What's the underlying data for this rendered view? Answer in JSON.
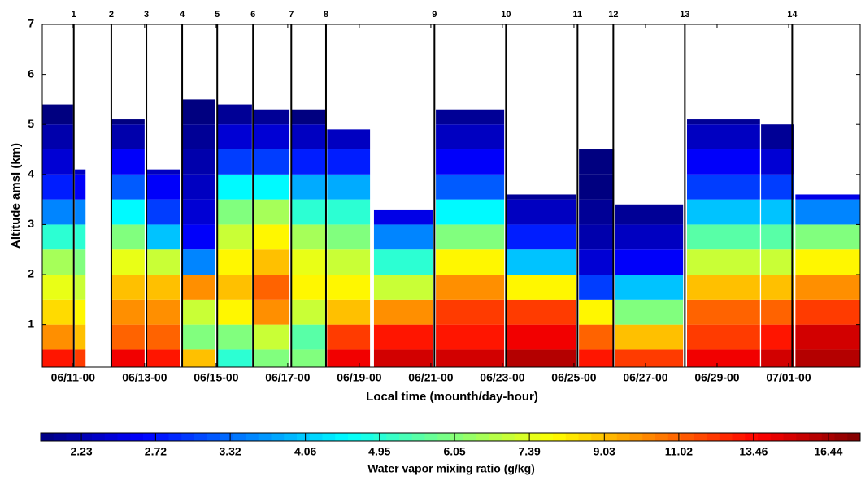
{
  "chart_data": {
    "type": "heatmap",
    "ylabel": "Altitude amsl (km)",
    "xlabel": "Local time (mounth/day-hour)",
    "ylim": [
      0.15,
      7
    ],
    "yticks": [
      1,
      2,
      3,
      4,
      5,
      6,
      7
    ],
    "xlim": [
      10.14,
      33.0
    ],
    "xticks": [
      {
        "value": 11,
        "label": "06/11-00"
      },
      {
        "value": 13,
        "label": "06/13-00"
      },
      {
        "value": 15,
        "label": "06/15-00"
      },
      {
        "value": 17,
        "label": "06/17-00"
      },
      {
        "value": 19,
        "label": "06/19-00"
      },
      {
        "value": 21,
        "label": "06/21-00"
      },
      {
        "value": 23,
        "label": "06/23-00"
      },
      {
        "value": 25,
        "label": "06/25-00"
      },
      {
        "value": 27,
        "label": "06/27-00"
      },
      {
        "value": 29,
        "label": "06/29-00"
      },
      {
        "value": 31,
        "label": "07/01-00"
      }
    ],
    "markers": [
      {
        "x": 11.02,
        "label": "1"
      },
      {
        "x": 12.07,
        "label": "2"
      },
      {
        "x": 13.05,
        "label": "3"
      },
      {
        "x": 14.05,
        "label": "4"
      },
      {
        "x": 15.03,
        "label": "5"
      },
      {
        "x": 16.03,
        "label": "6"
      },
      {
        "x": 17.1,
        "label": "7"
      },
      {
        "x": 18.07,
        "label": "8"
      },
      {
        "x": 21.1,
        "label": "9"
      },
      {
        "x": 23.1,
        "label": "10"
      },
      {
        "x": 25.1,
        "label": "11"
      },
      {
        "x": 26.1,
        "label": "12"
      },
      {
        "x": 28.1,
        "label": "13"
      },
      {
        "x": 31.1,
        "label": "14"
      }
    ],
    "levels": [
      0.15,
      0.5,
      1,
      1.5,
      2,
      2.5,
      3,
      3.5,
      4,
      4.5,
      5,
      5.5
    ],
    "blocks": [
      {
        "start": 10.14,
        "end": 11.0,
        "top": 5.4,
        "values": [
          13,
          10,
          8.5,
          7.5,
          6.5,
          5,
          3.5,
          2.8,
          2.4,
          2.2,
          2.0
        ]
      },
      {
        "start": 11.05,
        "end": 11.35,
        "top": 4.1,
        "values": [
          12,
          9,
          8,
          7,
          6,
          5,
          3.5,
          2.6,
          2.3,
          null,
          null
        ]
      },
      {
        "start": 12.05,
        "end": 13.0,
        "top": 5.1,
        "values": [
          14,
          11,
          10,
          9,
          7.5,
          6,
          4.5,
          3.2,
          2.6,
          2.2,
          2.0
        ]
      },
      {
        "start": 13.05,
        "end": 14.0,
        "top": 4.1,
        "values": [
          13,
          11,
          10,
          9,
          7,
          4,
          3,
          2.6,
          2.3,
          null,
          null
        ]
      },
      {
        "start": 14.05,
        "end": 14.98,
        "top": 5.7,
        "values": [
          9,
          6,
          7,
          10,
          3.5,
          2.6,
          2.4,
          2.3,
          2.2,
          2.1,
          2.0
        ]
      },
      {
        "start": 15.03,
        "end": 16.0,
        "top": 5.4,
        "values": [
          5,
          6,
          8,
          9,
          8,
          7,
          6,
          4.5,
          3,
          2.4,
          2.1
        ]
      },
      {
        "start": 16.05,
        "end": 17.05,
        "top": 5.3,
        "values": [
          6,
          7,
          10,
          11,
          9,
          8,
          6.5,
          4.5,
          3,
          2.4,
          2.1
        ]
      },
      {
        "start": 17.1,
        "end": 18.05,
        "top": 5.3,
        "values": [
          6,
          5.5,
          7,
          8,
          7.5,
          6.5,
          5,
          3.8,
          2.8,
          2.3,
          2.0
        ]
      },
      {
        "start": 18.1,
        "end": 19.3,
        "top": 4.9,
        "values": [
          14,
          12,
          9,
          8,
          7,
          6,
          5,
          3.8,
          2.8,
          2.3,
          null
        ]
      },
      {
        "start": 19.41,
        "end": 21.05,
        "top": 3.3,
        "values": [
          15,
          13,
          10,
          7,
          5,
          3.5,
          2.5,
          null,
          null,
          null,
          null
        ]
      },
      {
        "start": 21.14,
        "end": 23.05,
        "top": 5.3,
        "values": [
          15,
          13,
          12,
          10,
          8,
          6,
          4.5,
          3.2,
          2.6,
          2.3,
          2.1
        ]
      },
      {
        "start": 23.1,
        "end": 25.05,
        "top": 3.6,
        "values": [
          16,
          14,
          12,
          8,
          4,
          2.8,
          2.3,
          2.1,
          null,
          null,
          null
        ]
      },
      {
        "start": 25.14,
        "end": 26.12,
        "top": 4.5,
        "values": [
          13,
          11,
          8,
          3,
          2.4,
          2.2,
          2.1,
          2.0,
          2.0,
          null,
          null
        ]
      },
      {
        "start": 26.16,
        "end": 28.05,
        "top": 3.4,
        "values": [
          12,
          9,
          6,
          4,
          2.6,
          2.3,
          2.1,
          null,
          null,
          null,
          null
        ]
      },
      {
        "start": 28.16,
        "end": 30.2,
        "top": 5.1,
        "values": [
          14,
          12,
          11,
          9,
          7,
          5.5,
          4,
          3,
          2.6,
          2.3,
          2.1
        ]
      },
      {
        "start": 30.23,
        "end": 31.14,
        "top": 5.0,
        "values": [
          15,
          13,
          11,
          9,
          7,
          5.5,
          4,
          3,
          2.4,
          2.1,
          null
        ]
      },
      {
        "start": 31.19,
        "end": 33.0,
        "top": 3.6,
        "values": [
          16,
          15,
          12,
          10,
          8,
          6,
          3.5,
          2.5,
          null,
          null,
          null
        ]
      }
    ],
    "colorbar": {
      "label": "Water vapor mixing ratio (g/kg)",
      "colormap": "jet",
      "scale": "log",
      "clim": [
        2.0,
        17.9
      ],
      "ticks": [
        2.23,
        2.72,
        3.32,
        4.06,
        4.95,
        6.05,
        7.39,
        9.03,
        11.02,
        13.46,
        16.44
      ]
    }
  }
}
